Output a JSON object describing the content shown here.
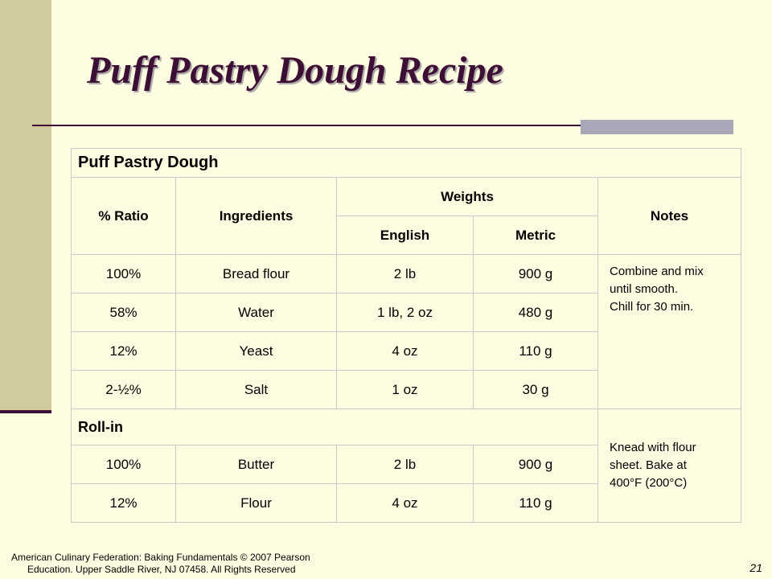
{
  "slide": {
    "title": "Puff Pastry Dough Recipe",
    "page_number": "21",
    "footer": {
      "line1": "American Culinary Federation: Baking Fundamentals © 2007 Pearson",
      "line2": "Education. Upper Saddle River, NJ 07458. All Rights Reserved"
    }
  },
  "table": {
    "title": "Puff Pastry Dough",
    "headers": {
      "ratio": "% Ratio",
      "ingredients": "Ingredients",
      "weights": "Weights",
      "english": "English",
      "metric": "Metric",
      "notes": "Notes"
    },
    "dough_rows": [
      {
        "ratio": "100%",
        "ingredient": "Bread flour",
        "english": "2 lb",
        "metric": "900 g"
      },
      {
        "ratio": "58%",
        "ingredient": "Water",
        "english": "1 lb, 2 oz",
        "metric": "480 g"
      },
      {
        "ratio": "12%",
        "ingredient": "Yeast",
        "english": "4 oz",
        "metric": "110 g"
      },
      {
        "ratio": "2-½%",
        "ingredient": "Salt",
        "english": "1 oz",
        "metric": "30 g"
      }
    ],
    "dough_notes": [
      "Combine and mix",
      "until smooth.",
      "Chill for 30 min."
    ],
    "rollin_title": "Roll-in",
    "rollin_rows": [
      {
        "ratio": "100%",
        "ingredient": "Butter",
        "english": "2 lb",
        "metric": "900 g"
      },
      {
        "ratio": "12%",
        "ingredient": "Flour",
        "english": "4 oz",
        "metric": "110 g"
      }
    ],
    "rollin_notes": [
      "Knead with flour",
      "sheet. Bake at",
      "400°F (200°C)"
    ]
  }
}
